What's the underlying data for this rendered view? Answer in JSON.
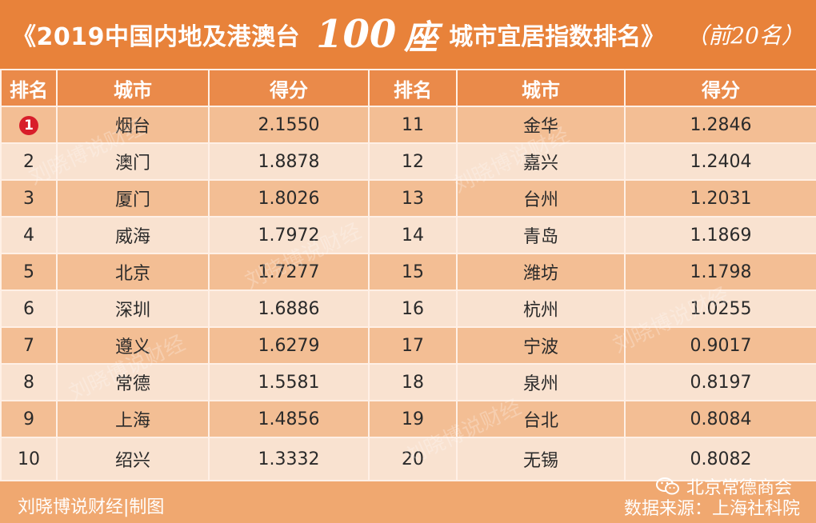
{
  "header": {
    "title_part1": "《2019中国内地及港澳台",
    "title_100": "100",
    "title_zuo": "座",
    "title_part2": "城市宜居指数排名》",
    "title_part3": "（前20名）"
  },
  "table": {
    "headers": [
      "排名",
      "城市",
      "得分",
      "排名",
      "城市",
      "得分"
    ],
    "rows": [
      {
        "r1": "1",
        "c1": "烟台",
        "s1": "2.1550",
        "r2": "11",
        "c2": "金华",
        "s2": "1.2846"
      },
      {
        "r1": "2",
        "c1": "澳门",
        "s1": "1.8878",
        "r2": "12",
        "c2": "嘉兴",
        "s2": "1.2404"
      },
      {
        "r1": "3",
        "c1": "厦门",
        "s1": "1.8026",
        "r2": "13",
        "c2": "台州",
        "s2": "1.2031"
      },
      {
        "r1": "4",
        "c1": "威海",
        "s1": "1.7972",
        "r2": "14",
        "c2": "青岛",
        "s2": "1.1869"
      },
      {
        "r1": "5",
        "c1": "北京",
        "s1": "1.7277",
        "r2": "15",
        "c2": "潍坊",
        "s2": "1.1798"
      },
      {
        "r1": "6",
        "c1": "深圳",
        "s1": "1.6886",
        "r2": "16",
        "c2": "杭州",
        "s2": "1.0255"
      },
      {
        "r1": "7",
        "c1": "遵义",
        "s1": "1.6279",
        "r2": "17",
        "c2": "宁波",
        "s2": "0.9017"
      },
      {
        "r1": "8",
        "c1": "常德",
        "s1": "1.5581",
        "r2": "18",
        "c2": "泉州",
        "s2": "0.8197"
      },
      {
        "r1": "9",
        "c1": "上海",
        "s1": "1.4856",
        "r2": "19",
        "c2": "台北",
        "s2": "0.8084"
      },
      {
        "r1": "10",
        "c1": "绍兴",
        "s1": "1.3332",
        "r2": "20",
        "c2": "无锡",
        "s2": "0.8082"
      }
    ]
  },
  "footer": {
    "maker": "刘晓博说财经|制图",
    "source": "数据来源：上海社科院",
    "wechat_account": "北京常德商会"
  },
  "watermark_text": "刘晓博说财经",
  "colors": {
    "banner": "#e8823a",
    "header_row": "#ea8a4a",
    "row_dark": "#f3be94",
    "row_light": "#f9e2d0",
    "rank1_badge": "#d81e2a"
  },
  "icons": {
    "wechat": "wechat-icon"
  }
}
